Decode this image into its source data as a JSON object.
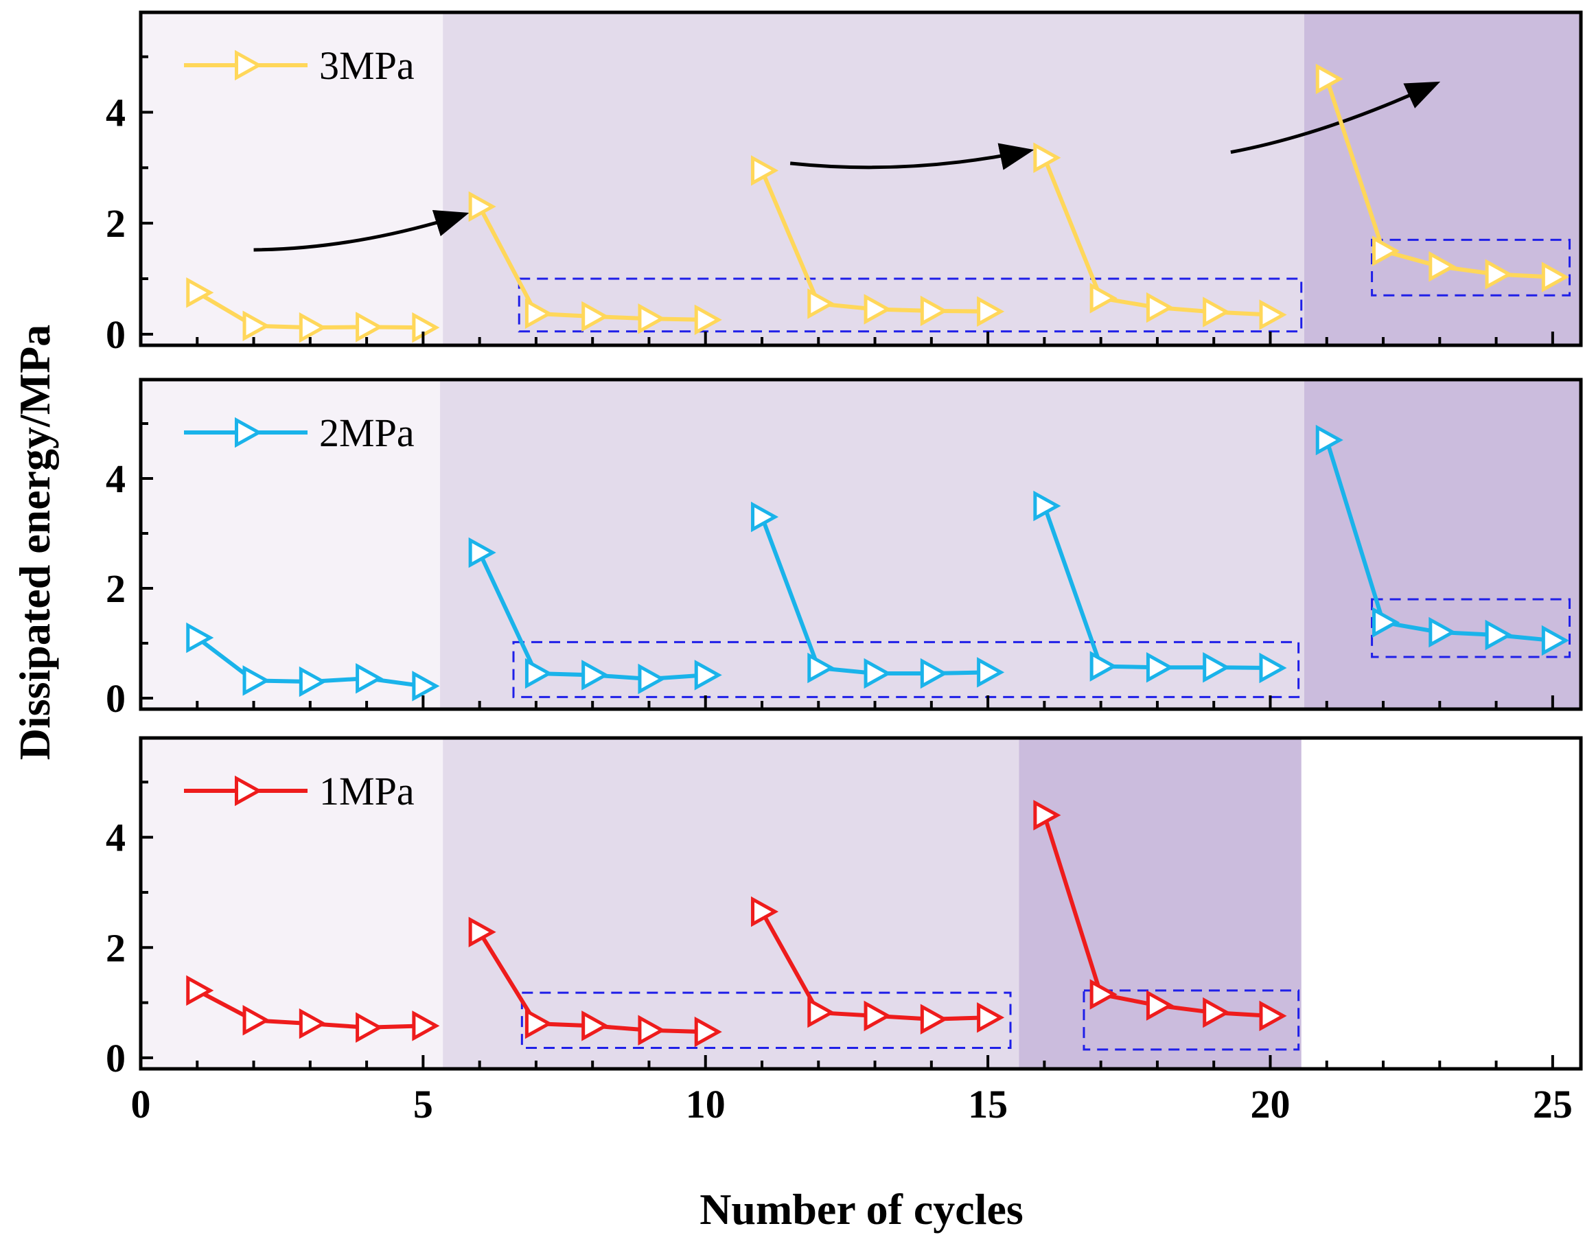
{
  "chart_data": {
    "type": "line",
    "xlabel": "Number of cycles",
    "ylabel": "Dissipated energy/MPa",
    "xlim": [
      0,
      25.5
    ],
    "ylim": [
      -0.2,
      5.8
    ],
    "x_ticks": [
      0,
      5,
      10,
      15,
      20,
      25
    ],
    "y_ticks": [
      0,
      2,
      4
    ],
    "grid": false,
    "legend_position": "top-left",
    "colors": {
      "stage1": "#f6f2f8",
      "stage2": "#e3dbeb",
      "stage3": "#cbbcdd",
      "dashed_box": "#1f1fe8",
      "arrow": "#000000"
    },
    "panels": [
      {
        "id": "p3",
        "series_name": "3MPa",
        "color": "#ffd75a",
        "x": [
          1,
          2,
          3,
          4,
          5,
          6,
          7,
          8,
          9,
          10,
          11,
          12,
          13,
          14,
          15,
          16,
          17,
          18,
          19,
          20,
          21,
          22,
          23,
          24,
          25
        ],
        "y": [
          0.75,
          0.15,
          0.12,
          0.13,
          0.12,
          2.3,
          0.37,
          0.32,
          0.28,
          0.26,
          2.95,
          0.55,
          0.45,
          0.42,
          0.41,
          3.18,
          0.65,
          0.48,
          0.4,
          0.35,
          4.6,
          1.5,
          1.22,
          1.08,
          1.03
        ],
        "stages": [
          [
            0,
            5.35
          ],
          [
            5.35,
            20.6
          ],
          [
            20.6,
            25.5
          ]
        ],
        "dashed_boxes": [
          {
            "x": [
              6.7,
              20.55
            ],
            "y": [
              0.05,
              1.0
            ]
          },
          {
            "x": [
              21.8,
              25.3
            ],
            "y": [
              0.7,
              1.7
            ]
          }
        ],
        "arrows": [
          {
            "from": [
              2,
              1.52
            ],
            "to": [
              5.7,
              2.15
            ]
          },
          {
            "from": [
              11.5,
              3.08
            ],
            "to": [
              15.7,
              3.3
            ]
          },
          {
            "from": [
              19.3,
              3.28
            ],
            "to": [
              22.9,
              4.5
            ]
          }
        ]
      },
      {
        "id": "p2",
        "series_name": "2MPa",
        "color": "#1ab3ea",
        "x": [
          1,
          2,
          3,
          4,
          5,
          6,
          7,
          8,
          9,
          10,
          11,
          12,
          13,
          14,
          15,
          16,
          17,
          18,
          19,
          20,
          21,
          22,
          23,
          24,
          25
        ],
        "y": [
          1.1,
          0.32,
          0.3,
          0.36,
          0.22,
          2.65,
          0.45,
          0.42,
          0.35,
          0.42,
          3.3,
          0.55,
          0.45,
          0.45,
          0.47,
          3.5,
          0.58,
          0.56,
          0.56,
          0.55,
          4.7,
          1.38,
          1.2,
          1.15,
          1.05
        ],
        "stages": [
          [
            0,
            5.3
          ],
          [
            5.3,
            20.6
          ],
          [
            20.6,
            25.5
          ]
        ],
        "dashed_boxes": [
          {
            "x": [
              6.6,
              20.5
            ],
            "y": [
              0.02,
              1.02
            ]
          },
          {
            "x": [
              21.8,
              25.3
            ],
            "y": [
              0.75,
              1.8
            ]
          }
        ],
        "arrows": []
      },
      {
        "id": "p1",
        "series_name": "1MPa",
        "color": "#ee1c1c",
        "x": [
          1,
          2,
          3,
          4,
          5,
          6,
          7,
          8,
          9,
          10,
          11,
          12,
          13,
          14,
          15,
          16,
          17,
          18,
          19,
          20
        ],
        "y": [
          1.22,
          0.68,
          0.62,
          0.55,
          0.58,
          2.28,
          0.62,
          0.58,
          0.5,
          0.47,
          2.65,
          0.82,
          0.76,
          0.7,
          0.73,
          4.4,
          1.15,
          0.95,
          0.82,
          0.76
        ],
        "stages": [
          [
            0,
            5.35
          ],
          [
            5.35,
            15.55
          ],
          [
            15.55,
            20.55
          ]
        ],
        "dashed_boxes": [
          {
            "x": [
              6.75,
              15.4
            ],
            "y": [
              0.18,
              1.18
            ]
          },
          {
            "x": [
              16.7,
              20.5
            ],
            "y": [
              0.15,
              1.22
            ]
          }
        ],
        "arrows": []
      }
    ]
  }
}
